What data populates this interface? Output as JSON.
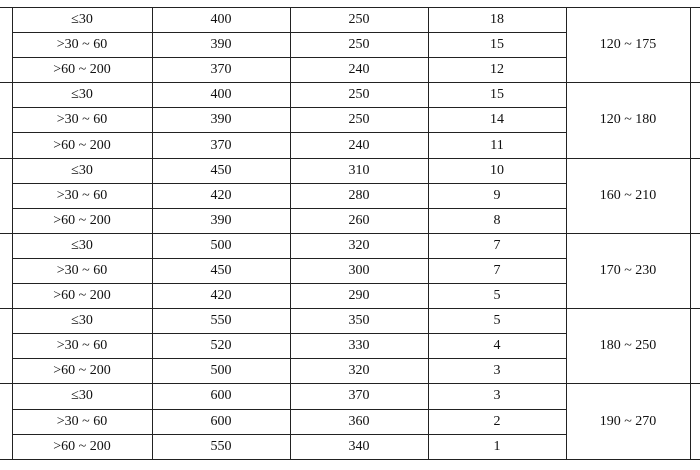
{
  "groups": [
    {
      "rows": [
        [
          "≤30",
          "400",
          "250",
          "18"
        ],
        [
          ">30 ~ 60",
          "390",
          "250",
          "15"
        ],
        [
          ">60 ~ 200",
          "370",
          "240",
          "12"
        ]
      ],
      "range": "120 ~ 175"
    },
    {
      "rows": [
        [
          "≤30",
          "400",
          "250",
          "15"
        ],
        [
          ">30 ~ 60",
          "390",
          "250",
          "14"
        ],
        [
          ">60 ~ 200",
          "370",
          "240",
          "11"
        ]
      ],
      "range": "120 ~ 180"
    },
    {
      "rows": [
        [
          "≤30",
          "450",
          "310",
          "10"
        ],
        [
          ">30 ~ 60",
          "420",
          "280",
          "9"
        ],
        [
          ">60 ~ 200",
          "390",
          "260",
          "8"
        ]
      ],
      "range": "160 ~ 210"
    },
    {
      "rows": [
        [
          "≤30",
          "500",
          "320",
          "7"
        ],
        [
          ">30 ~ 60",
          "450",
          "300",
          "7"
        ],
        [
          ">60 ~ 200",
          "420",
          "290",
          "5"
        ]
      ],
      "range": "170 ~ 230"
    },
    {
      "rows": [
        [
          "≤30",
          "550",
          "350",
          "5"
        ],
        [
          ">30 ~ 60",
          "520",
          "330",
          "4"
        ],
        [
          ">60 ~ 200",
          "500",
          "320",
          "3"
        ]
      ],
      "range": "180 ~ 250"
    },
    {
      "rows": [
        [
          "≤30",
          "600",
          "370",
          "3"
        ],
        [
          ">30 ~ 60",
          "600",
          "360",
          "2"
        ],
        [
          ">60 ~ 200",
          "550",
          "340",
          "1"
        ]
      ],
      "range": "190 ~ 270"
    }
  ]
}
